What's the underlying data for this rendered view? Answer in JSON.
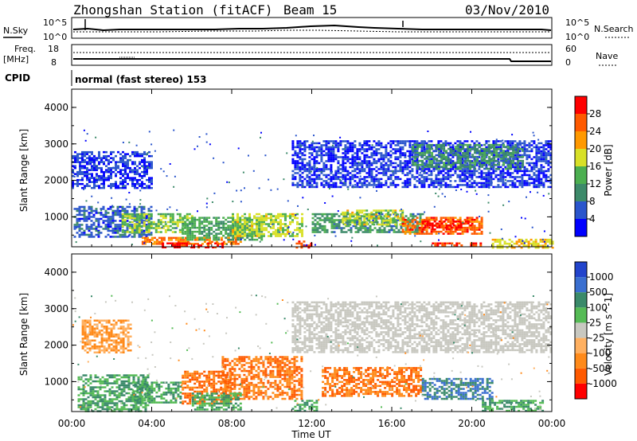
{
  "header": {
    "title": "Zhongshan Station (fitACF)",
    "beam": "Beam 15",
    "date": "03/Nov/2010"
  },
  "params": {
    "nsky_label": "N.Sky",
    "nsearch_label": "N.Search",
    "freq_label": "Freq.",
    "freq_unit": "[MHz]",
    "nave_label": "Nave",
    "noise_ticks": [
      "10^5",
      "10^0"
    ],
    "freq_ticks": [
      "18",
      "8"
    ],
    "nave_ticks": [
      "60",
      "0"
    ],
    "cpid_label": "CPID",
    "cpid_text": "normal (fast stereo) 153"
  },
  "x_axis": {
    "label": "Time UT",
    "ticks": [
      "00:00",
      "04:00",
      "08:00",
      "12:00",
      "16:00",
      "20:00",
      "00:00"
    ]
  },
  "colors": {
    "power_scale": [
      "#0000ff",
      "#2a55cc",
      "#3d8a6a",
      "#4caf50",
      "#d8e027",
      "#ff9900",
      "#ff5a00",
      "#ff0000"
    ],
    "velocity_scale": [
      "#2244cc",
      "#3a6fd0",
      "#3a8a6a",
      "#55bb55",
      "#c8c8c0",
      "#ffb060",
      "#ff8a1a",
      "#ff5a00",
      "#ff0000"
    ]
  },
  "chart_data": [
    {
      "type": "heatmap",
      "name": "power",
      "ylabel": "Slant Range [km]",
      "yticks": [
        "1000",
        "2000",
        "3000",
        "4000"
      ],
      "ylim": [
        180,
        4500
      ],
      "xlim_hours": [
        0,
        24
      ],
      "colorbar": {
        "label": "Power [dB]",
        "ticks": [
          "4",
          "8",
          "12",
          "16",
          "20",
          "24",
          "28"
        ],
        "range": [
          0,
          30
        ]
      },
      "patches": [
        {
          "t0": 0.1,
          "t1": 4.0,
          "r0": 450,
          "r1": 1300,
          "v": 6
        },
        {
          "t0": 0.0,
          "t1": 4.0,
          "r0": 1800,
          "r1": 2800,
          "v": 4
        },
        {
          "t0": 2.5,
          "t1": 6.0,
          "r0": 600,
          "r1": 1100,
          "v": 14
        },
        {
          "t0": 3.5,
          "t1": 8.5,
          "r0": 250,
          "r1": 450,
          "v": 22
        },
        {
          "t0": 4.5,
          "t1": 7.5,
          "r0": 180,
          "r1": 300,
          "v": 28
        },
        {
          "t0": 5.5,
          "t1": 9.5,
          "r0": 350,
          "r1": 1000,
          "v": 12
        },
        {
          "t0": 8.0,
          "t1": 11.5,
          "r0": 450,
          "r1": 1100,
          "v": 16
        },
        {
          "t0": 11.2,
          "t1": 12.0,
          "r0": 180,
          "r1": 350,
          "v": 26
        },
        {
          "t0": 12.0,
          "t1": 17.5,
          "r0": 600,
          "r1": 1100,
          "v": 10
        },
        {
          "t0": 13.5,
          "t1": 16.5,
          "r0": 800,
          "r1": 1200,
          "v": 16
        },
        {
          "t0": 16.5,
          "t1": 20.5,
          "r0": 550,
          "r1": 1000,
          "v": 24
        },
        {
          "t0": 17.5,
          "t1": 20.0,
          "r0": 650,
          "r1": 900,
          "v": 28
        },
        {
          "t0": 18.0,
          "t1": 20.5,
          "r0": 200,
          "r1": 300,
          "v": 26
        },
        {
          "t0": 11.0,
          "t1": 24.0,
          "r0": 1800,
          "r1": 3100,
          "v": 4
        },
        {
          "t0": 17.0,
          "t1": 22.5,
          "r0": 2300,
          "r1": 3000,
          "v": 10
        },
        {
          "t0": 21.0,
          "t1": 24.0,
          "r0": 180,
          "r1": 400,
          "v": 18
        }
      ]
    },
    {
      "type": "heatmap",
      "name": "velocity",
      "ylabel": "Slant Range [km]",
      "yticks": [
        "1000",
        "2000",
        "3000",
        "4000"
      ],
      "ylim": [
        180,
        4500
      ],
      "xlim_hours": [
        0,
        24
      ],
      "colorbar": {
        "label": "Velocity [m s^-1]",
        "ticks": [
          "1000",
          "500",
          "100",
          "25",
          "-25",
          "-100",
          "-500",
          "-1000"
        ]
      },
      "patches": [
        {
          "t0": 0.3,
          "t1": 3.8,
          "r0": 200,
          "r1": 1200,
          "v": 100
        },
        {
          "t0": 3.0,
          "t1": 5.5,
          "r0": 400,
          "r1": 1000,
          "v": 100
        },
        {
          "t0": 5.5,
          "t1": 8.0,
          "r0": 400,
          "r1": 1300,
          "v": -500
        },
        {
          "t0": 7.5,
          "t1": 11.5,
          "r0": 500,
          "r1": 1700,
          "v": -500
        },
        {
          "t0": 6.0,
          "t1": 8.5,
          "r0": 250,
          "r1": 700,
          "v": 100
        },
        {
          "t0": 11.0,
          "t1": 12.3,
          "r0": 200,
          "r1": 500,
          "v": 100
        },
        {
          "t0": 12.5,
          "t1": 17.5,
          "r0": 600,
          "r1": 1400,
          "v": -500
        },
        {
          "t0": 17.5,
          "t1": 21.0,
          "r0": 500,
          "r1": 1100,
          "v": 500
        },
        {
          "t0": 11.0,
          "t1": 24.0,
          "r0": 1800,
          "r1": 3200,
          "v": 0
        },
        {
          "t0": 0.5,
          "t1": 3.0,
          "r0": 1800,
          "r1": 2700,
          "v": -100
        },
        {
          "t0": 20.5,
          "t1": 23.5,
          "r0": 200,
          "r1": 500,
          "v": 100
        }
      ]
    }
  ]
}
